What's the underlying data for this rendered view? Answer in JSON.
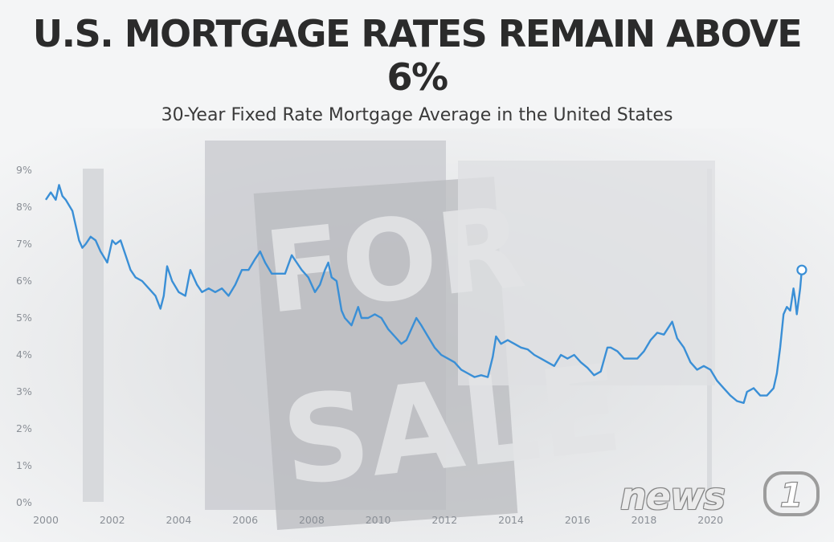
{
  "title_line1": "U.S. MORTGAGE RATES REMAIN ABOVE",
  "title_line2": "6%",
  "subtitle": "30-Year Fixed Rate Mortgage Average in the United States",
  "watermark": "news",
  "watermark_digit": "1",
  "colors": {
    "line": "#3a8fd6",
    "marker_fill": "#ffffff",
    "text": "#2b2b2b",
    "tick": "#8a8f96"
  },
  "chart_data": {
    "type": "line",
    "title": "U.S. MORTGAGE RATES REMAIN ABOVE 6%",
    "subtitle": "30-Year Fixed Rate Mortgage Average in the United States",
    "xlabel": "",
    "ylabel": "",
    "xlim": [
      2000,
      2022.8
    ],
    "ylim": [
      0,
      9
    ],
    "x_ticks": [
      2000,
      2002,
      2004,
      2006,
      2008,
      2010,
      2012,
      2014,
      2016,
      2018,
      2020
    ],
    "x_tick_labels": [
      "2000",
      "2002",
      "2004",
      "2006",
      "2008",
      "2010",
      "2012",
      "2014",
      "2016",
      "2018",
      "2020"
    ],
    "y_ticks": [
      0,
      1,
      2,
      3,
      4,
      5,
      6,
      7,
      8,
      9
    ],
    "y_tick_labels": [
      "0%",
      "1%",
      "2%",
      "3%",
      "4%",
      "5%",
      "6%",
      "7%",
      "8%",
      "9%"
    ],
    "grid": false,
    "series": [
      {
        "x": [
          2000.0,
          2000.15,
          2000.3,
          2000.4,
          2000.5,
          2000.6,
          2000.8,
          2001.0,
          2001.1,
          2001.2,
          2001.35,
          2001.5,
          2001.65,
          2001.85,
          2002.0,
          2002.1,
          2002.25,
          2002.4,
          2002.55,
          2002.7,
          2002.9,
          2003.1,
          2003.3,
          2003.45,
          2003.55,
          2003.65,
          2003.8,
          2004.0,
          2004.2,
          2004.35,
          2004.55,
          2004.7,
          2004.9,
          2005.1,
          2005.3,
          2005.5,
          2005.7,
          2005.9,
          2006.1,
          2006.3,
          2006.45,
          2006.6,
          2006.8,
          2007.0,
          2007.2,
          2007.4,
          2007.55,
          2007.7,
          2007.9,
          2008.1,
          2008.25,
          2008.4,
          2008.5,
          2008.6,
          2008.75,
          2008.9,
          2009.0,
          2009.2,
          2009.4,
          2009.5,
          2009.7,
          2009.9,
          2010.1,
          2010.3,
          2010.5,
          2010.7,
          2010.85,
          2011.0,
          2011.15,
          2011.3,
          2011.5,
          2011.7,
          2011.9,
          2012.1,
          2012.3,
          2012.5,
          2012.7,
          2012.9,
          2013.1,
          2013.3,
          2013.45,
          2013.55,
          2013.7,
          2013.9,
          2014.1,
          2014.3,
          2014.5,
          2014.7,
          2014.9,
          2015.1,
          2015.3,
          2015.5,
          2015.7,
          2015.9,
          2016.1,
          2016.3,
          2016.5,
          2016.7,
          2016.9,
          2017.0,
          2017.2,
          2017.4,
          2017.6,
          2017.8,
          2018.0,
          2018.2,
          2018.4,
          2018.6,
          2018.85,
          2019.0,
          2019.2,
          2019.4,
          2019.6,
          2019.8,
          2020.0,
          2020.2,
          2020.4,
          2020.6,
          2020.8,
          2021.0,
          2021.1,
          2021.3,
          2021.5,
          2021.7,
          2021.9,
          2022.0,
          2022.1,
          2022.2,
          2022.3,
          2022.4,
          2022.5,
          2022.55,
          2022.6,
          2022.7,
          2022.75
        ],
        "y": [
          8.2,
          8.4,
          8.2,
          8.6,
          8.3,
          8.2,
          7.9,
          7.1,
          6.9,
          7.0,
          7.2,
          7.1,
          6.8,
          6.5,
          7.1,
          7.0,
          7.1,
          6.7,
          6.3,
          6.1,
          6.0,
          5.8,
          5.6,
          5.25,
          5.6,
          6.4,
          6.0,
          5.7,
          5.6,
          6.3,
          5.9,
          5.7,
          5.8,
          5.7,
          5.8,
          5.6,
          5.9,
          6.3,
          6.3,
          6.6,
          6.8,
          6.5,
          6.2,
          6.2,
          6.2,
          6.7,
          6.5,
          6.3,
          6.1,
          5.7,
          5.9,
          6.3,
          6.5,
          6.1,
          6.0,
          5.2,
          5.0,
          4.8,
          5.3,
          5.0,
          5.0,
          5.1,
          5.0,
          4.7,
          4.5,
          4.3,
          4.4,
          4.7,
          5.0,
          4.8,
          4.5,
          4.2,
          4.0,
          3.9,
          3.8,
          3.6,
          3.5,
          3.4,
          3.45,
          3.4,
          3.95,
          4.5,
          4.3,
          4.4,
          4.3,
          4.2,
          4.15,
          4.0,
          3.9,
          3.8,
          3.7,
          4.0,
          3.9,
          4.0,
          3.8,
          3.65,
          3.45,
          3.55,
          4.2,
          4.2,
          4.1,
          3.9,
          3.9,
          3.9,
          4.1,
          4.4,
          4.6,
          4.55,
          4.9,
          4.45,
          4.2,
          3.8,
          3.6,
          3.7,
          3.6,
          3.3,
          3.1,
          2.9,
          2.75,
          2.7,
          3.0,
          3.1,
          2.9,
          2.9,
          3.1,
          3.5,
          4.2,
          5.1,
          5.3,
          5.2,
          5.8,
          5.5,
          5.1,
          5.8,
          6.3
        ]
      }
    ],
    "last_point_marker": true
  }
}
